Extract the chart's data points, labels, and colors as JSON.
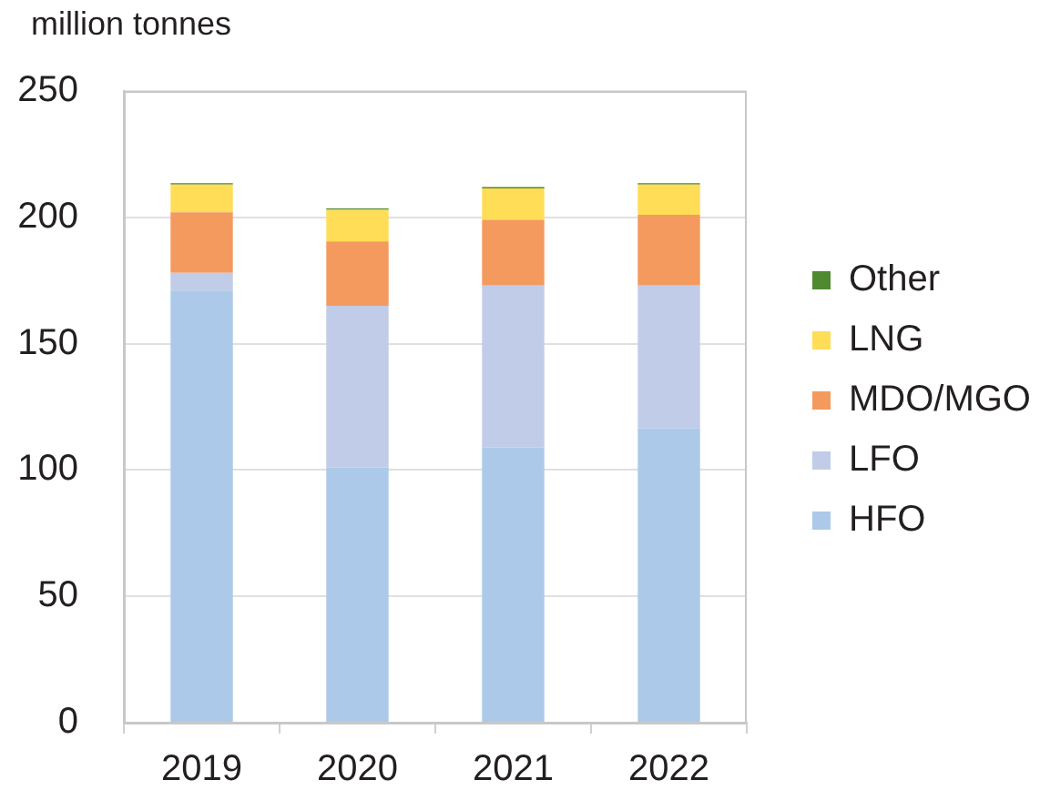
{
  "chart_data": {
    "type": "bar",
    "stacked": true,
    "categories": [
      "2019",
      "2020",
      "2021",
      "2022"
    ],
    "ylabel": "million tonnes",
    "ylim": [
      0,
      250
    ],
    "yticks": [
      0,
      50,
      100,
      150,
      200,
      250
    ],
    "grid": "y",
    "legend": "right",
    "series": [
      {
        "name": "HFO",
        "color": "#adc9e9",
        "values": [
          171,
          101,
          109,
          116.5
        ]
      },
      {
        "name": "LFO",
        "color": "#c1cce8",
        "values": [
          7,
          64,
          64,
          56.5
        ]
      },
      {
        "name": "MDO/MGO",
        "color": "#f49a5e",
        "values": [
          24,
          25.5,
          26,
          28
        ]
      },
      {
        "name": "LNG",
        "color": "#ffdd57",
        "values": [
          11,
          12.5,
          12.5,
          12
        ]
      },
      {
        "name": "Other",
        "color": "#4f8a30",
        "values": [
          0.5,
          0.5,
          0.5,
          0.5
        ]
      }
    ]
  }
}
